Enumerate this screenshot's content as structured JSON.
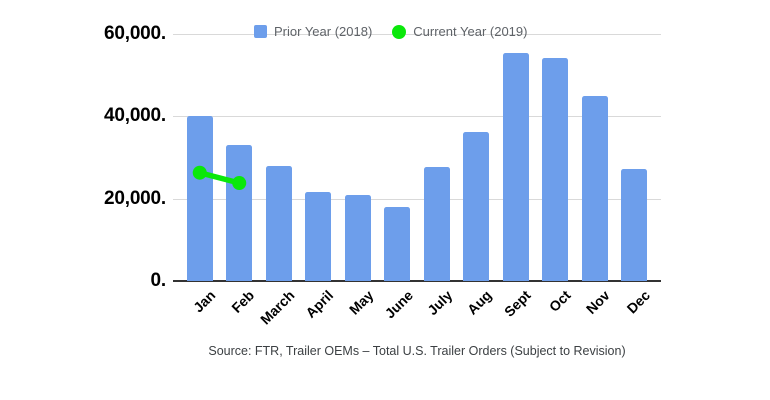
{
  "chart_data": {
    "type": "bar",
    "title": "",
    "xlabel": "",
    "ylabel": "",
    "categories": [
      "Jan",
      "Feb",
      "March",
      "April",
      "May",
      "June",
      "July",
      "Aug",
      "Sept",
      "Oct",
      "Nov",
      "Dec"
    ],
    "series": [
      {
        "name": "Prior Year (2018)",
        "type": "bar",
        "color": "#6d9eeb",
        "values": [
          40000,
          33000,
          28000,
          21600,
          20800,
          18000,
          27600,
          36200,
          55400,
          54200,
          45000,
          27300
        ]
      },
      {
        "name": "Current Year (2019)",
        "type": "line",
        "color": "#0ae80a",
        "values": [
          26300,
          23800,
          null,
          null,
          null,
          null,
          null,
          null,
          null,
          null,
          null,
          null
        ]
      }
    ],
    "ylim": [
      0,
      60000
    ],
    "y_ticks": [
      {
        "value": 0,
        "label": "0."
      },
      {
        "value": 20000,
        "label": "20,000."
      },
      {
        "value": 40000,
        "label": "40,000."
      },
      {
        "value": 60000,
        "label": "60,000."
      }
    ],
    "grid": "horizontal",
    "legend_position": "top"
  },
  "legend": {
    "items": [
      {
        "label": "Prior Year (2018)",
        "marker": "square",
        "color": "#6d9eeb"
      },
      {
        "label": "Current Year (2019)",
        "marker": "circle",
        "color": "#0ae80a"
      }
    ]
  },
  "footer": {
    "source_text": "Source: FTR, Trailer OEMs – Total U.S. Trailer Orders (Subject to Revision)"
  },
  "colors": {
    "bar_blue": "#6d9eeb",
    "line_green": "#0ae80a",
    "gridline": "#d9d9d9",
    "axis_line": "#333333",
    "tick_text": "#000000",
    "legend_text": "#5f6368",
    "source_text": "#3c4043",
    "background": "#ffffff"
  }
}
